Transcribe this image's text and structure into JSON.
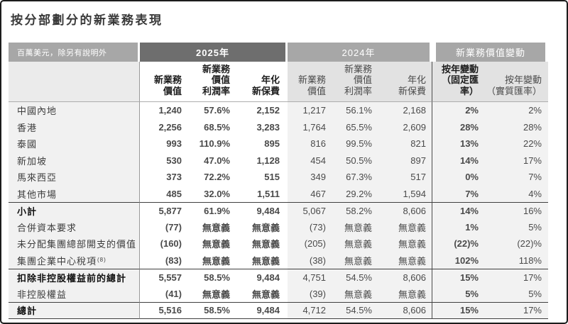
{
  "page": {
    "title": "按分部劃分的新業務表現",
    "unit_note": "百萬美元，除另有說明外"
  },
  "colors": {
    "band_dark": "#6e6e6e",
    "band_medium": "#a7a7a7",
    "subheader_bg": "#e2e2e2",
    "body_shaded": "#f2f2f2",
    "label_body_bg": "#f1f1f1",
    "label_subheader_bg": "#ebebeb",
    "line_dark": "#3f3f3f",
    "line_gray": "#adadad",
    "divider_gray": "#9a9a9a",
    "divider_dark": "#4d4d4d",
    "text_strong": "#111111",
    "text_regular": "#4a4a4a"
  },
  "table": {
    "groups": [
      "2025年",
      "2024年",
      "新業務價值變動"
    ],
    "subheaders": {
      "nbv": "新業務\n價值",
      "margin": "新業務\n價值\n利潤率",
      "anp": "年化\n新保費",
      "change_fixed": "按年變動\n（固定匯率）",
      "change_actual": "按年變動\n（實質匯率）"
    },
    "rows": [
      {
        "label": "中國內地",
        "y2025": [
          "1,240",
          "57.6%",
          "2,152"
        ],
        "y2024": [
          "1,217",
          "56.1%",
          "2,168"
        ],
        "change": [
          "2%",
          "2%"
        ]
      },
      {
        "label": "香港",
        "y2025": [
          "2,256",
          "68.5%",
          "3,283"
        ],
        "y2024": [
          "1,764",
          "65.5%",
          "2,609"
        ],
        "change": [
          "28%",
          "28%"
        ]
      },
      {
        "label": "泰國",
        "y2025": [
          "993",
          "110.9%",
          "895"
        ],
        "y2024": [
          "816",
          "99.5%",
          "821"
        ],
        "change": [
          "13%",
          "22%"
        ]
      },
      {
        "label": "新加坡",
        "y2025": [
          "530",
          "47.0%",
          "1,128"
        ],
        "y2024": [
          "454",
          "50.5%",
          "897"
        ],
        "change": [
          "14%",
          "17%"
        ]
      },
      {
        "label": "馬來西亞",
        "y2025": [
          "373",
          "72.2%",
          "515"
        ],
        "y2024": [
          "349",
          "67.3%",
          "517"
        ],
        "change": [
          "0%",
          "7%"
        ]
      },
      {
        "label": "其他市場",
        "y2025": [
          "485",
          "32.0%",
          "1,511"
        ],
        "y2024": [
          "467",
          "29.2%",
          "1,594"
        ],
        "change": [
          "7%",
          "4%"
        ]
      },
      {
        "label": "小計",
        "bold": true,
        "top_border": true,
        "y2025": [
          "5,877",
          "61.9%",
          "9,484"
        ],
        "y2024": [
          "5,067",
          "58.2%",
          "8,606"
        ],
        "change": [
          "14%",
          "16%"
        ]
      },
      {
        "label": "合併資本要求",
        "y2025": [
          "(77)",
          "無意義",
          "無意義"
        ],
        "y2024": [
          "(73)",
          "無意義",
          "無意義"
        ],
        "change": [
          "1%",
          "5%"
        ]
      },
      {
        "label": "未分配集團總部開支的價值",
        "y2025": [
          "(160)",
          "無意義",
          "無意義"
        ],
        "y2024": [
          "(205)",
          "無意義",
          "無意義"
        ],
        "change": [
          "(22)%",
          "(22)%"
        ]
      },
      {
        "label": "集團企業中心稅項",
        "footnote": "(8)",
        "y2025": [
          "(83)",
          "無意義",
          "無意義"
        ],
        "y2024": [
          "(38)",
          "無意義",
          "無意義"
        ],
        "change": [
          "102%",
          "118%"
        ]
      },
      {
        "label": "扣除非控股權益前的總計",
        "bold": true,
        "top_border": true,
        "y2025": [
          "5,557",
          "58.5%",
          "9,484"
        ],
        "y2024": [
          "4,751",
          "54.5%",
          "8,606"
        ],
        "change": [
          "15%",
          "17%"
        ]
      },
      {
        "label": "非控股權益",
        "y2025": [
          "(41)",
          "無意義",
          "無意義"
        ],
        "y2024": [
          "(39)",
          "無意義",
          "無意義"
        ],
        "change": [
          "5%",
          "5%"
        ]
      },
      {
        "label": "總計",
        "bold": true,
        "top_border": true,
        "y2025": [
          "5,516",
          "58.5%",
          "9,484"
        ],
        "y2024": [
          "4,712",
          "54.5%",
          "8,606"
        ],
        "change": [
          "15%",
          "17%"
        ]
      }
    ]
  }
}
